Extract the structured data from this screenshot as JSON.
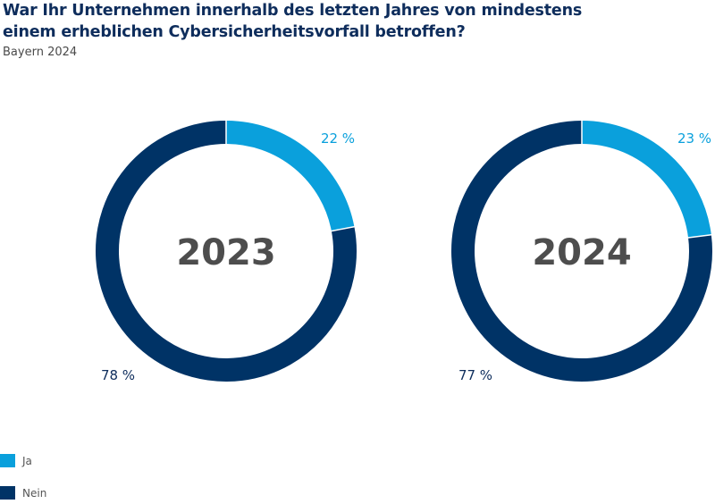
{
  "header": {
    "title_line1": "War Ihr Unternehmen innerhalb des letzten Jahres von mindestens",
    "title_line2": "einem erheblichen Cybersicherheitsvorfall betroffen?",
    "subtitle": "Bayern 2024"
  },
  "colors": {
    "ja": "#0aa0dc",
    "nein": "#003366",
    "center_text": "#4d4d4d",
    "label_ja": "#0aa0dc",
    "label_nein": "#0e2d5c"
  },
  "chart_data": [
    {
      "type": "pie",
      "center_label": "2023",
      "slices": [
        {
          "name": "Ja",
          "value": 22,
          "label": "22 %"
        },
        {
          "name": "Nein",
          "value": 78,
          "label": "78 %"
        }
      ]
    },
    {
      "type": "pie",
      "center_label": "2024",
      "slices": [
        {
          "name": "Ja",
          "value": 23,
          "label": "23 %"
        },
        {
          "name": "Nein",
          "value": 77,
          "label": "77 %"
        }
      ]
    }
  ],
  "legend": {
    "items": [
      {
        "label": "Ja"
      },
      {
        "label": "Nein"
      }
    ]
  }
}
